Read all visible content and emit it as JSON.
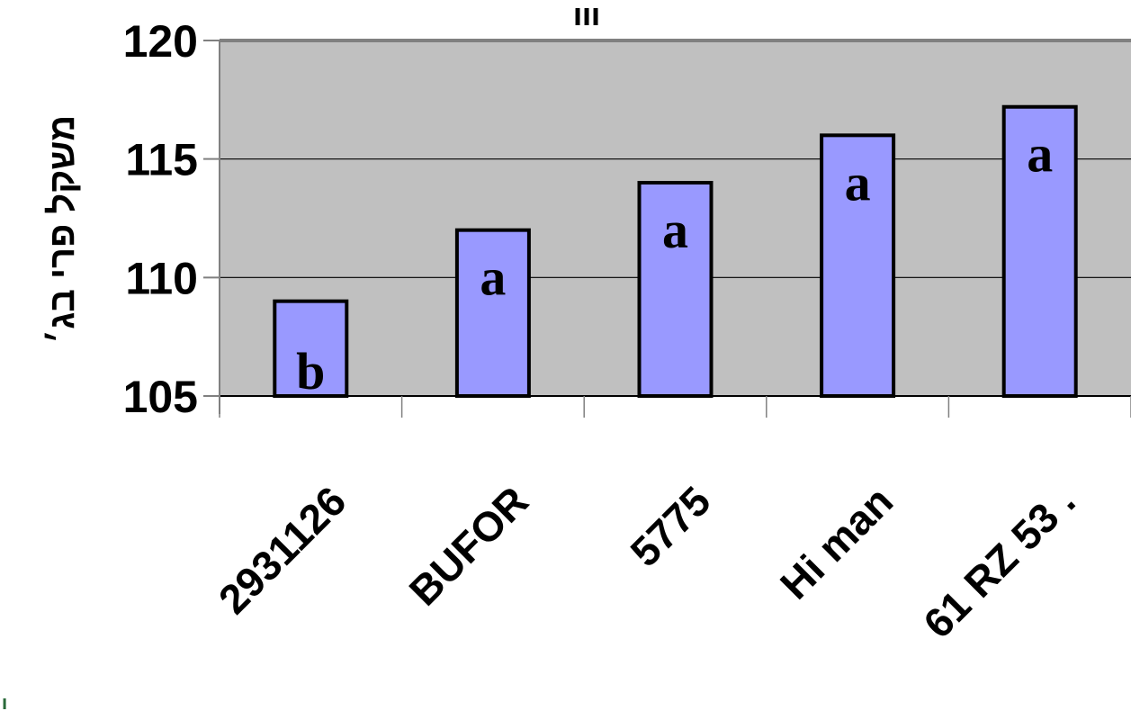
{
  "chart_data": {
    "type": "bar",
    "title": "ııı",
    "ylabel": "משקל פרי בג׳",
    "xlabel": "",
    "categories": [
      "2931126",
      "BUFOR",
      "5775",
      "Hi man",
      "61 RZ 53 ."
    ],
    "values": [
      109,
      112,
      114,
      116,
      117.2
    ],
    "data_labels": [
      "b",
      "a",
      "a",
      "a",
      "a"
    ],
    "ylim": [
      105,
      120
    ],
    "yticks": [
      105,
      110,
      115,
      120
    ],
    "grid": true,
    "legend": "none"
  },
  "colors": {
    "bar_fill": "#9999ff",
    "bar_stroke": "#000000",
    "plot_background": "#c0c0c0",
    "gridline": "#000000",
    "axis": "#808080"
  },
  "edge_fragment": "ı"
}
